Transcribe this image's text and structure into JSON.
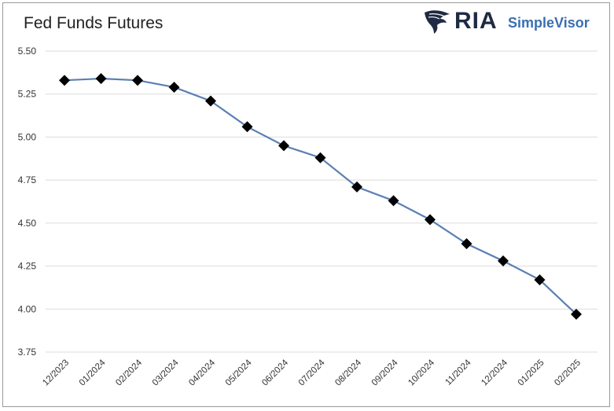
{
  "chart_data": {
    "type": "line",
    "title": "Fed Funds Futures",
    "categories": [
      "12/2023",
      "01/2024",
      "02/2024",
      "03/2024",
      "04/2024",
      "05/2024",
      "06/2024",
      "07/2024",
      "08/2024",
      "09/2024",
      "10/2024",
      "11/2024",
      "12/2024",
      "01/2025",
      "02/2025"
    ],
    "series": [
      {
        "values": [
          5.33,
          5.34,
          5.33,
          5.29,
          5.21,
          5.06,
          4.95,
          4.88,
          4.71,
          4.63,
          4.52,
          4.38,
          4.28,
          4.17,
          3.97
        ]
      }
    ],
    "ylim": [
      3.75,
      5.5
    ],
    "yticks": [
      "3.75",
      "4.00",
      "4.25",
      "4.50",
      "4.75",
      "5.00",
      "5.25",
      "5.50"
    ],
    "grid": true,
    "line_color": "#5b7fb5",
    "marker_color": "#000000",
    "marker": "diamond"
  },
  "logo": {
    "brand": "RIA",
    "product": "SimpleVisor"
  },
  "colors": {
    "grid": "#dcdcdc",
    "logo_dark": "#1f2a44",
    "logo_blue": "#3a6fb0"
  }
}
